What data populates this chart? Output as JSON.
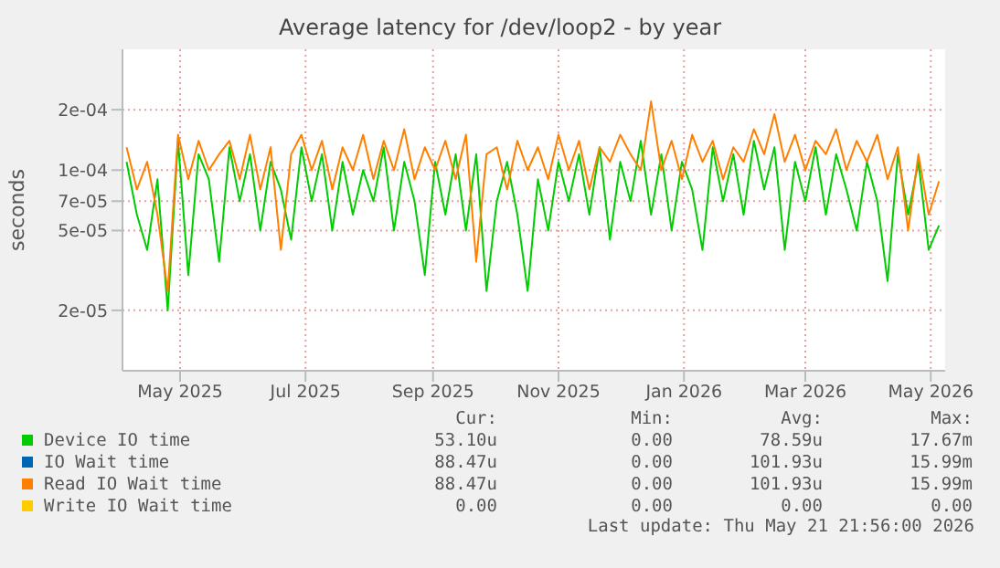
{
  "chart_data": {
    "type": "line",
    "title": "Average latency for /dev/loop2 - by year",
    "ylabel": "seconds",
    "x": [
      "2025-04-05",
      "2025-04-10",
      "2025-04-15",
      "2025-04-20",
      "2025-04-25",
      "2025-04-30",
      "2025-05-05",
      "2025-05-10",
      "2025-05-15",
      "2025-05-20",
      "2025-05-25",
      "2025-05-30",
      "2025-06-04",
      "2025-06-09",
      "2025-06-14",
      "2025-06-19",
      "2025-06-24",
      "2025-06-29",
      "2025-07-04",
      "2025-07-09",
      "2025-07-14",
      "2025-07-19",
      "2025-07-24",
      "2025-07-29",
      "2025-08-03",
      "2025-08-08",
      "2025-08-13",
      "2025-08-18",
      "2025-08-23",
      "2025-08-28",
      "2025-09-02",
      "2025-09-07",
      "2025-09-12",
      "2025-09-17",
      "2025-09-22",
      "2025-09-27",
      "2025-10-02",
      "2025-10-07",
      "2025-10-12",
      "2025-10-17",
      "2025-10-22",
      "2025-10-27",
      "2025-11-01",
      "2025-11-06",
      "2025-11-11",
      "2025-11-16",
      "2025-11-21",
      "2025-11-26",
      "2025-12-01",
      "2025-12-06",
      "2025-12-11",
      "2025-12-16",
      "2025-12-21",
      "2025-12-26",
      "2025-12-31",
      "2026-01-05",
      "2026-01-10",
      "2026-01-15",
      "2026-01-20",
      "2026-01-25",
      "2026-01-30",
      "2026-02-04",
      "2026-02-09",
      "2026-02-14",
      "2026-02-19",
      "2026-02-24",
      "2026-03-01",
      "2026-03-06",
      "2026-03-11",
      "2026-03-16",
      "2026-03-21",
      "2026-03-26",
      "2026-03-31",
      "2026-04-05",
      "2026-04-10",
      "2026-04-15",
      "2026-04-20",
      "2026-04-25",
      "2026-04-30",
      "2026-05-05"
    ],
    "series": [
      {
        "name": "Device IO time",
        "color": "#00cc00",
        "values": [
          0.00011,
          6e-05,
          4e-05,
          9e-05,
          2e-05,
          0.00014,
          3e-05,
          0.00012,
          9e-05,
          3.5e-05,
          0.00013,
          7e-05,
          0.00012,
          5e-05,
          0.00011,
          8e-05,
          4.5e-05,
          0.00013,
          7e-05,
          0.00012,
          5e-05,
          0.00011,
          6e-05,
          0.0001,
          7e-05,
          0.00013,
          5e-05,
          0.00011,
          7e-05,
          3e-05,
          0.00011,
          6e-05,
          0.00012,
          5e-05,
          0.00012,
          2.5e-05,
          7e-05,
          0.00011,
          6e-05,
          2.5e-05,
          9e-05,
          5e-05,
          0.00011,
          7e-05,
          0.00012,
          6e-05,
          0.00013,
          4.5e-05,
          0.00011,
          7e-05,
          0.00014,
          6e-05,
          0.00012,
          5e-05,
          0.00011,
          8e-05,
          4e-05,
          0.00013,
          7e-05,
          0.00012,
          6e-05,
          0.00014,
          8e-05,
          0.00013,
          4e-05,
          0.00011,
          7e-05,
          0.00013,
          6e-05,
          0.00012,
          8e-05,
          5e-05,
          0.00011,
          7e-05,
          2.8e-05,
          0.00012,
          6e-05,
          0.00011,
          4e-05,
          5.3e-05
        ]
      },
      {
        "name": "IO Wait time",
        "color": "#0066b3",
        "values": [
          null,
          null,
          null,
          null,
          null,
          null,
          null,
          null,
          null,
          null,
          null,
          null,
          null,
          null,
          null,
          null,
          null,
          null,
          null,
          null,
          null,
          null,
          null,
          null,
          null,
          null,
          null,
          null,
          null,
          null,
          null,
          null,
          null,
          null,
          null,
          null,
          null,
          null,
          null,
          null,
          null,
          null,
          null,
          null,
          null,
          null,
          null,
          null,
          null,
          null,
          null,
          null,
          null,
          null,
          null,
          null,
          null,
          null,
          null,
          null,
          null,
          null,
          null,
          null,
          null,
          null,
          null,
          null,
          null,
          null,
          null,
          null,
          null,
          null,
          null,
          null,
          null,
          null,
          null,
          null
        ]
      },
      {
        "name": "Read IO Wait time",
        "color": "#ff8000",
        "values": [
          0.00013,
          8e-05,
          0.00011,
          6e-05,
          2.5e-05,
          0.00015,
          9e-05,
          0.00014,
          0.0001,
          0.00012,
          0.00014,
          9e-05,
          0.00015,
          8e-05,
          0.00013,
          4e-05,
          0.00012,
          0.00015,
          0.0001,
          0.00014,
          8e-05,
          0.00013,
          0.0001,
          0.00015,
          9e-05,
          0.00014,
          0.0001,
          0.00016,
          9e-05,
          0.00013,
          0.0001,
          0.00014,
          9e-05,
          0.00015,
          3.5e-05,
          0.00012,
          0.00013,
          8e-05,
          0.00014,
          0.0001,
          0.00013,
          9e-05,
          0.00015,
          0.0001,
          0.00014,
          8e-05,
          0.00013,
          0.00011,
          0.00015,
          0.00012,
          0.0001,
          0.00022,
          0.0001,
          0.00014,
          9e-05,
          0.00015,
          0.00011,
          0.00014,
          9e-05,
          0.00013,
          0.00011,
          0.00016,
          0.00012,
          0.00019,
          0.00011,
          0.00015,
          0.0001,
          0.00014,
          0.00012,
          0.00016,
          0.0001,
          0.00014,
          0.00011,
          0.00015,
          9e-05,
          0.00013,
          5e-05,
          0.00012,
          6e-05,
          8.8e-05
        ]
      },
      {
        "name": "Write IO Wait time",
        "color": "#ffcc00",
        "values": [
          null,
          null,
          null,
          null,
          null,
          null,
          null,
          null,
          null,
          null,
          null,
          null,
          null,
          null,
          null,
          null,
          null,
          null,
          null,
          null,
          null,
          null,
          null,
          null,
          null,
          null,
          null,
          null,
          null,
          null,
          null,
          null,
          null,
          null,
          null,
          null,
          null,
          null,
          null,
          null,
          null,
          null,
          null,
          null,
          null,
          null,
          null,
          null,
          null,
          null,
          null,
          null,
          null,
          null,
          null,
          null,
          null,
          null,
          null,
          null,
          null,
          null,
          null,
          null,
          null,
          null,
          null,
          null,
          null,
          null,
          null,
          null,
          null,
          null,
          null,
          null,
          null,
          null,
          null,
          null
        ]
      }
    ],
    "xlim": [
      "2025-04-03",
      "2026-05-08"
    ],
    "xticks": [
      {
        "value": "2025-05-01",
        "label": "May 2025"
      },
      {
        "value": "2025-07-01",
        "label": "Jul 2025"
      },
      {
        "value": "2025-09-01",
        "label": "Sep 2025"
      },
      {
        "value": "2025-11-01",
        "label": "Nov 2025"
      },
      {
        "value": "2026-01-01",
        "label": "Jan 2026"
      },
      {
        "value": "2026-03-01",
        "label": "Mar 2026"
      },
      {
        "value": "2026-05-01",
        "label": "May 2026"
      }
    ],
    "ylim": [
      1e-05,
      0.0004
    ],
    "yticks": [
      {
        "value": 2e-05,
        "label": "2e-05"
      },
      {
        "value": 5e-05,
        "label": "5e-05"
      },
      {
        "value": 7e-05,
        "label": "7e-05"
      },
      {
        "value": 0.0001,
        "label": "1e-04"
      },
      {
        "value": 0.0002,
        "label": "2e-04"
      }
    ],
    "log": true,
    "grid": true,
    "legend": "bottom",
    "marker": "none",
    "line_style": "solid",
    "annotations": [
      "Cur:",
      "Min:",
      "Avg:",
      "Max:",
      "53.10u",
      "0.00",
      "78.59u",
      "17.67m",
      "88.47u",
      "0.00",
      "101.93u",
      "15.99m",
      "88.47u",
      "0.00",
      "101.93u",
      "15.99m",
      "0.00",
      "0.00",
      "0.00",
      "0.00",
      "Last update: Thu May 21 21:56:00 2026"
    ]
  }
}
